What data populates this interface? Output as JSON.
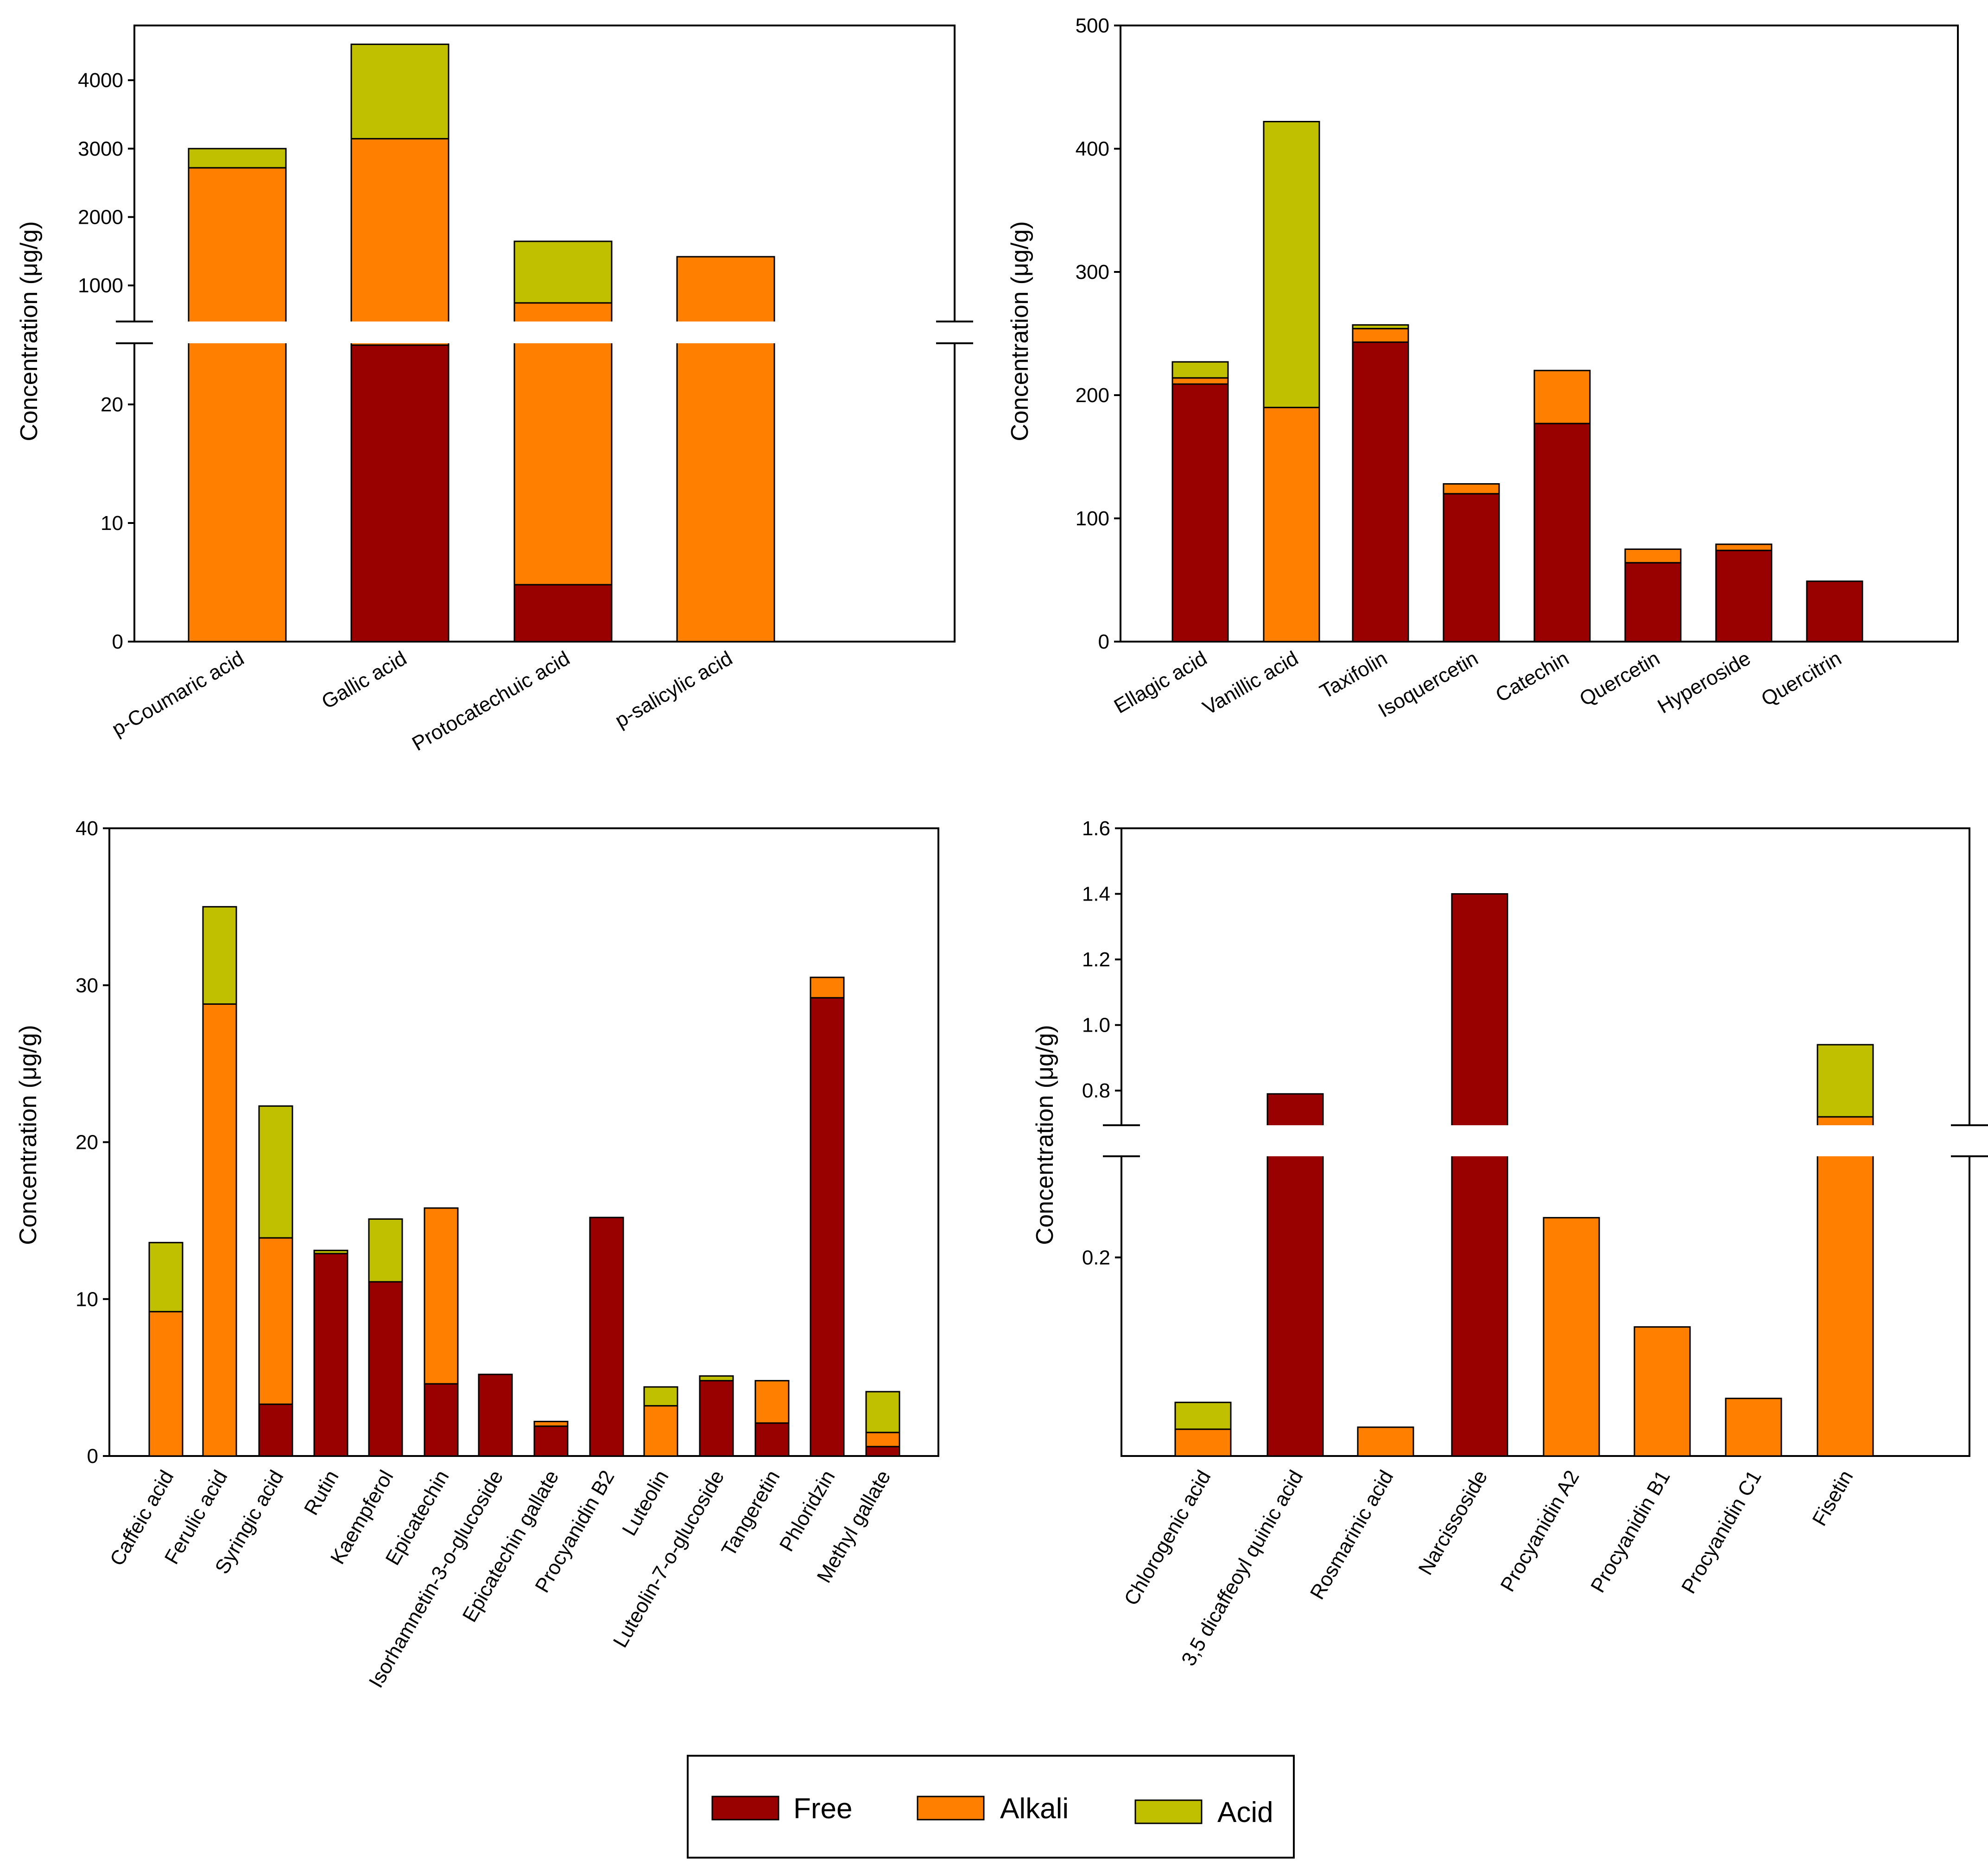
{
  "colors": {
    "Free": "#990000",
    "Alkali": "#ff8000",
    "Acid": "#c0c000"
  },
  "legend": {
    "items": [
      {
        "key": "Free",
        "label": "Free"
      },
      {
        "key": "Alkali",
        "label": "Alkali"
      },
      {
        "key": "Acid",
        "label": "Acid"
      }
    ]
  },
  "chart_data": [
    {
      "type": "bar",
      "stacked": true,
      "ylabel": "Concentration (μg/g)",
      "categories": [
        "p-Coumaric acid",
        "Gallic acid",
        "Protocatechuic acid",
        "p-salicylic acid"
      ],
      "series": [
        {
          "name": "Free",
          "values": [
            0,
            25,
            4.8,
            0
          ]
        },
        {
          "name": "Alkali",
          "values": [
            2720,
            3120,
            740,
            1420
          ]
        },
        {
          "name": "Acid",
          "values": [
            280,
            1380,
            900,
            0
          ]
        }
      ],
      "broken_axis": {
        "lower": {
          "ylim": [
            0,
            25
          ],
          "ticks": [
            0,
            10,
            20
          ]
        },
        "upper": {
          "ylim": [
            500,
            4800
          ],
          "ticks": [
            1000,
            2000,
            3000,
            4000
          ]
        }
      }
    },
    {
      "type": "bar",
      "stacked": true,
      "ylabel": "Concentration (μg/g)",
      "categories": [
        "Ellagic acid",
        "Vanillic acid",
        "Taxifolin",
        "Isoquercetin",
        "Catechin",
        "Quercetin",
        "Hyperoside",
        "Quercitrin"
      ],
      "series": [
        {
          "name": "Free",
          "values": [
            209,
            0,
            243,
            120,
            177,
            64,
            74,
            49
          ]
        },
        {
          "name": "Alkali",
          "values": [
            5,
            190,
            11,
            8,
            43,
            11,
            5,
            0
          ]
        },
        {
          "name": "Acid",
          "values": [
            13,
            232,
            3,
            0,
            0,
            0,
            0,
            0
          ]
        }
      ],
      "ylim": [
        0,
        500
      ],
      "ticks": [
        0,
        100,
        200,
        300,
        400,
        500
      ]
    },
    {
      "type": "bar",
      "stacked": true,
      "ylabel": "Concentration (μg/g)",
      "categories": [
        "Caffeic acid",
        "Ferulic acid",
        "Syringic acid",
        "Rutin",
        "Kaempferol",
        "Epicatechin",
        "Isorhamnetin-3-o-glucoside",
        "Epicatechin gallate",
        "Procyanidin B2",
        "Luteolin",
        "Luteolin-7-o-glucoside",
        "Tangeretin",
        "Phloridzin",
        "Methyl gallate"
      ],
      "series": [
        {
          "name": "Free",
          "values": [
            0,
            0,
            3.3,
            12.9,
            11.1,
            4.6,
            5.2,
            1.9,
            15.2,
            0,
            4.8,
            2.1,
            29.2,
            0.6
          ]
        },
        {
          "name": "Alkali",
          "values": [
            9.2,
            28.8,
            10.6,
            0,
            0,
            11.2,
            0,
            0.3,
            0,
            3.2,
            0,
            2.7,
            1.3,
            0.9
          ]
        },
        {
          "name": "Acid",
          "values": [
            4.4,
            6.2,
            8.4,
            0.2,
            4.0,
            0,
            0,
            0,
            0,
            1.2,
            0.3,
            0,
            0,
            2.6
          ]
        }
      ],
      "ylim": [
        0,
        40
      ],
      "ticks": [
        0,
        10,
        20,
        30,
        40
      ]
    },
    {
      "type": "bar",
      "stacked": true,
      "ylabel": "Concentration (μg/g)",
      "categories": [
        "Chlorogenic acid",
        "3,5 dicaffeoyl quinic acid",
        "Rosmarinic acid",
        "Narcissoside",
        "Procyanidin A2",
        "Procyanidin B1",
        "Procyanidin C1",
        "Fisetin"
      ],
      "series": [
        {
          "name": "Free",
          "values": [
            0,
            0.79,
            0,
            1.4,
            0,
            0,
            0,
            0
          ]
        },
        {
          "name": "Alkali",
          "values": [
            0.027,
            0,
            0.029,
            0,
            0.24,
            0.13,
            0.058,
            0.72
          ]
        },
        {
          "name": "Acid",
          "values": [
            0.027,
            0,
            0,
            0,
            0,
            0,
            0,
            0.22
          ]
        }
      ],
      "broken_axis": {
        "lower": {
          "ylim": [
            0,
            0.3
          ],
          "ticks": [
            0.2
          ]
        },
        "upper": {
          "ylim": [
            0.7,
            1.6
          ],
          "ticks": [
            0.8,
            1.0,
            1.2,
            1.4,
            1.6
          ]
        }
      }
    }
  ]
}
